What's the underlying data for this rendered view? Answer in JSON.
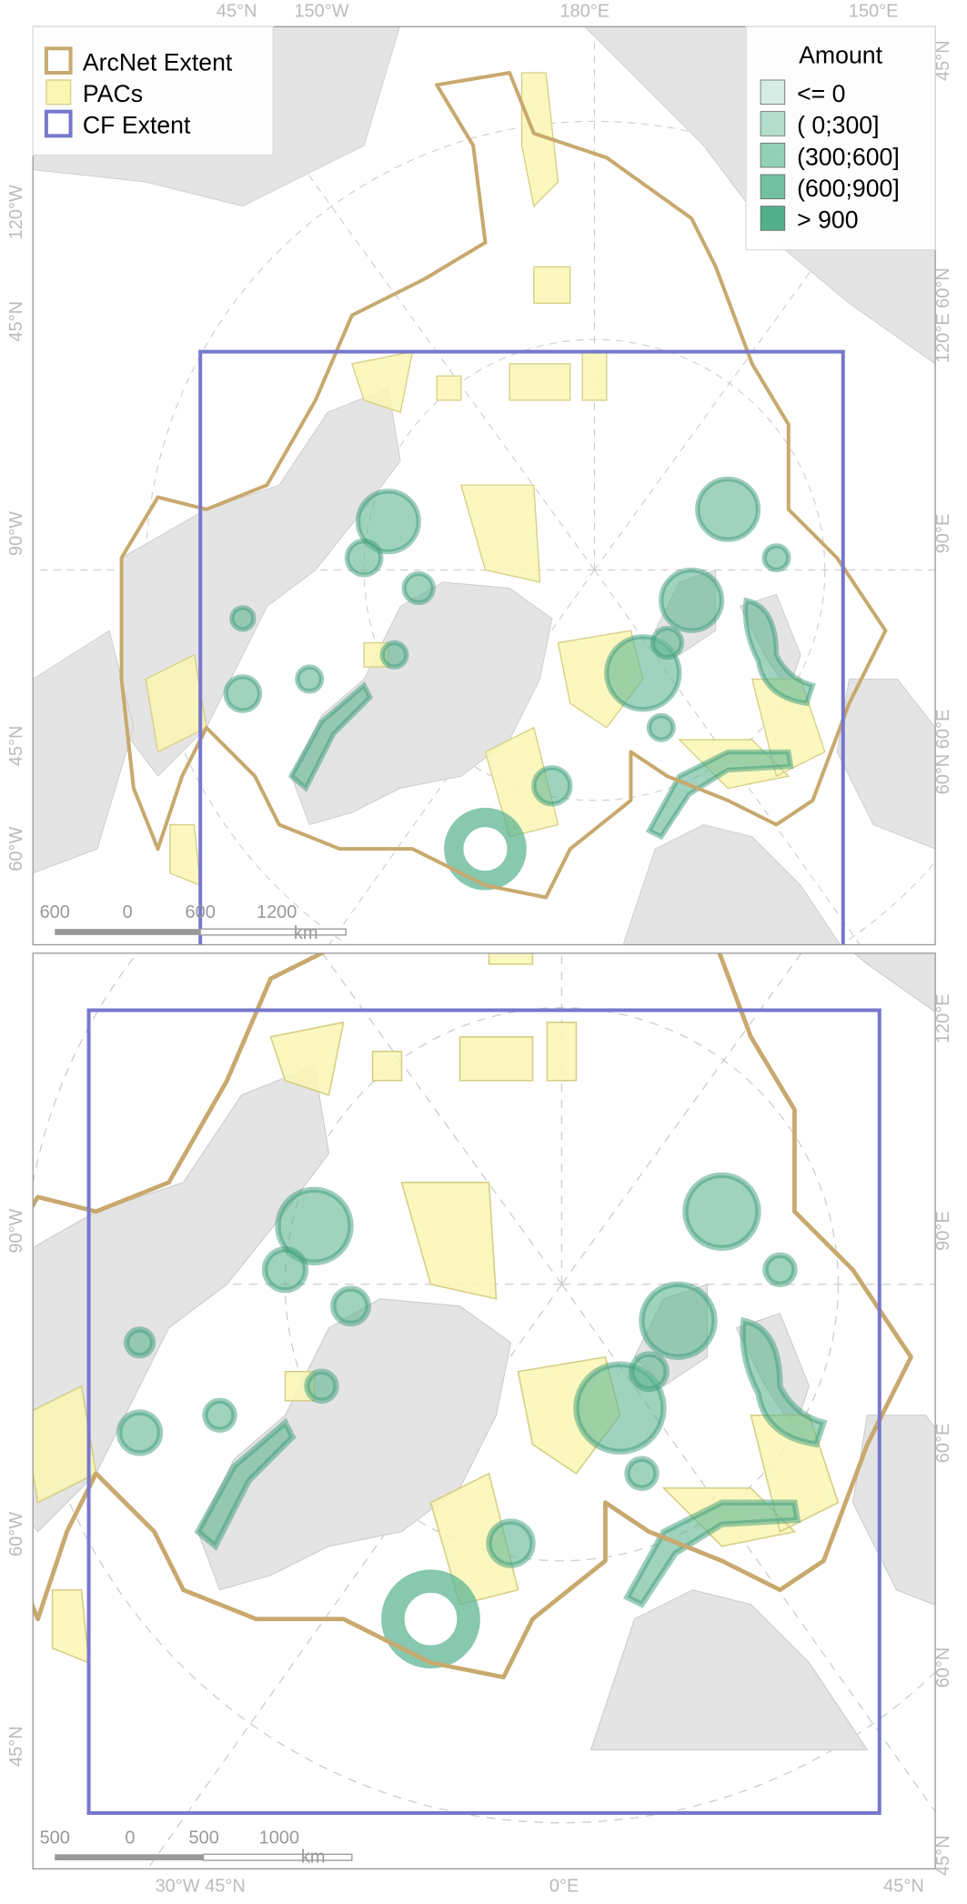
{
  "legend": {
    "items": [
      "ArcNet Extent",
      "PACs",
      "CF Extent"
    ]
  },
  "amount_legend": {
    "title": "Amount",
    "items": [
      "<=   0",
      "(  0;300]",
      "(300;600]",
      "(600;900]",
      "> 900"
    ]
  },
  "panels": [
    {
      "graticule_labels": {
        "top": [
          "45°N",
          "150°W",
          "180°E",
          "150°E"
        ],
        "left": [
          "120°W",
          "45°N",
          "90°W",
          "45°N",
          "60°W"
        ],
        "right": [
          "45°N",
          "120°E 60°N",
          "90°E",
          "60°N 60°E"
        ]
      },
      "scale_bar": [
        "600",
        "0",
        "600",
        "1200",
        "km"
      ]
    },
    {
      "graticule_labels": {
        "bottom": [
          "30°W 45°N",
          "0°E",
          "45°N"
        ],
        "left": [
          "90°W",
          "60°W",
          "45°N"
        ],
        "right": [
          "120°E",
          "90°E",
          "60°E",
          "60°N",
          "45°N"
        ]
      },
      "scale_bar": [
        "500",
        "0",
        "500",
        "1000",
        "km"
      ]
    }
  ]
}
